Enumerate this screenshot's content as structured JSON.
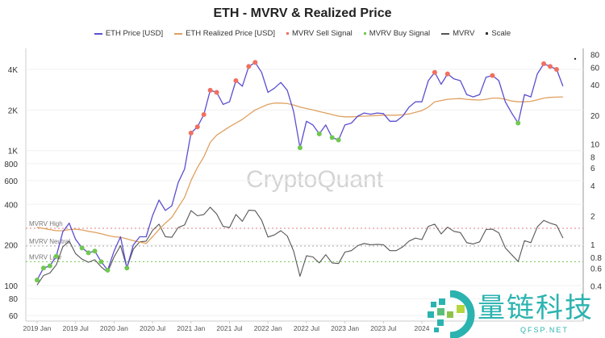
{
  "chart_data": {
    "type": "line",
    "title": "ETH - MVRV & Realized Price",
    "legend": {
      "placement": "top",
      "entries": [
        {
          "name": "ETH Price [USD]",
          "color": "#5a4fcf"
        },
        {
          "name": "ETH Realized Price [USD]",
          "color": "#e0a060"
        },
        {
          "name": "MVRV Sell Signal",
          "color": "#f07060"
        },
        {
          "name": "MVRV Buy Signal",
          "color": "#70c850"
        },
        {
          "name": "MVRV",
          "color": "#555555"
        },
        {
          "name": "Scale",
          "color": "#333333"
        }
      ]
    },
    "x_start": "2019-01",
    "x_tick_labels": [
      "2019 Jan",
      "2019 Jul",
      "2020 Jan",
      "2020 Jul",
      "2021 Jan",
      "2021 Jul",
      "2022 Jan",
      "2022 Jul",
      "2023 Jan",
      "2023 Jul",
      "2024"
    ],
    "left_axis": {
      "scale": "log",
      "ticks": [
        {
          "v": 4000,
          "l": "4K"
        },
        {
          "v": 2000,
          "l": "2K"
        },
        {
          "v": 1000,
          "l": "1K"
        },
        {
          "v": 800,
          "l": "800"
        },
        {
          "v": 600,
          "l": "600"
        },
        {
          "v": 400,
          "l": "400"
        },
        {
          "v": 200,
          "l": "200"
        },
        {
          "v": 100,
          "l": "100"
        },
        {
          "v": 80,
          "l": "80"
        },
        {
          "v": 60,
          "l": "60"
        }
      ]
    },
    "right_axis": {
      "scale": "log",
      "ticks": [
        80,
        60,
        40,
        20,
        10,
        8,
        6,
        4,
        2,
        1,
        0.8,
        0.6,
        0.4
      ]
    },
    "grid": true,
    "reference_lines": [
      {
        "label": "MVRV High",
        "value": 1.5,
        "color": "#e08080"
      },
      {
        "label": "MVRV Neutral",
        "value": 1.0,
        "color": "#aaaaaa"
      },
      {
        "label": "MVRV Low",
        "value": 0.7,
        "color": "#70c850"
      }
    ],
    "series": [
      {
        "name": "ETH Price [USD]",
        "axis": "left",
        "values": [
          110,
          135,
          140,
          165,
          250,
          290,
          220,
          190,
          175,
          180,
          150,
          130,
          180,
          230,
          135,
          200,
          230,
          230,
          330,
          430,
          360,
          390,
          580,
          730,
          1350,
          1500,
          1850,
          2800,
          2700,
          2200,
          2300,
          3300,
          3000,
          4200,
          4500,
          3800,
          2700,
          2900,
          3200,
          2800,
          1950,
          1050,
          1650,
          1550,
          1330,
          1550,
          1250,
          1200,
          1550,
          1600,
          1800,
          1900,
          1860,
          1900,
          1880,
          1650,
          1650,
          1800,
          2100,
          2300,
          2300,
          3300,
          3800,
          3100,
          3700,
          3400,
          3300,
          2600,
          2500,
          2600,
          3500,
          3600,
          3300,
          2300,
          1900,
          1600,
          2600,
          2500,
          3700,
          4400,
          4200,
          4000,
          3000
        ]
      },
      {
        "name": "ETH Realized Price [USD]",
        "axis": "left",
        "values": [
          270,
          265,
          260,
          255,
          255,
          260,
          262,
          258,
          252,
          248,
          242,
          235,
          230,
          228,
          222,
          215,
          210,
          205,
          230,
          260,
          290,
          320,
          380,
          450,
          600,
          750,
          900,
          1150,
          1300,
          1400,
          1500,
          1600,
          1700,
          1850,
          2000,
          2100,
          2200,
          2250,
          2250,
          2230,
          2180,
          2100,
          2050,
          2000,
          1950,
          1900,
          1850,
          1800,
          1780,
          1780,
          1790,
          1800,
          1810,
          1820,
          1830,
          1830,
          1830,
          1840,
          1870,
          1920,
          1980,
          2100,
          2300,
          2350,
          2400,
          2420,
          2430,
          2400,
          2380,
          2370,
          2400,
          2450,
          2450,
          2400,
          2330,
          2300,
          2300,
          2320,
          2380,
          2450,
          2480,
          2490,
          2500
        ]
      },
      {
        "name": "MVRV",
        "axis": "right",
        "values": [
          0.41,
          0.51,
          0.54,
          0.65,
          0.98,
          1.12,
          0.84,
          0.74,
          0.69,
          0.73,
          0.62,
          0.55,
          0.78,
          1.01,
          0.61,
          0.93,
          1.1,
          1.12,
          1.43,
          1.65,
          1.24,
          1.22,
          1.53,
          1.62,
          2.25,
          2.0,
          2.06,
          2.43,
          2.08,
          1.57,
          1.53,
          2.06,
          1.76,
          2.27,
          2.25,
          1.81,
          1.23,
          1.29,
          1.42,
          1.26,
          0.89,
          0.5,
          0.8,
          0.78,
          0.68,
          0.82,
          0.68,
          0.67,
          0.87,
          0.9,
          1.01,
          1.06,
          1.03,
          1.04,
          1.03,
          0.9,
          0.9,
          0.98,
          1.12,
          1.2,
          1.16,
          1.57,
          1.65,
          1.32,
          1.54,
          1.4,
          1.36,
          1.08,
          1.05,
          1.1,
          1.46,
          1.47,
          1.35,
          0.96,
          0.82,
          0.7,
          1.13,
          1.08,
          1.55,
          1.8,
          1.69,
          1.61,
          1.2
        ]
      }
    ],
    "sell_signal_months": [
      24,
      25,
      26,
      27,
      28,
      31,
      33,
      34,
      62,
      64,
      71,
      79,
      80,
      81
    ],
    "buy_signal_months": [
      0,
      1,
      2,
      3,
      7,
      8,
      9,
      10,
      11,
      14,
      41,
      44,
      46,
      47,
      75
    ]
  },
  "watermark": "CryptoQuant",
  "logo": {
    "text": "量链科技",
    "sub": "QFSP.NET"
  }
}
